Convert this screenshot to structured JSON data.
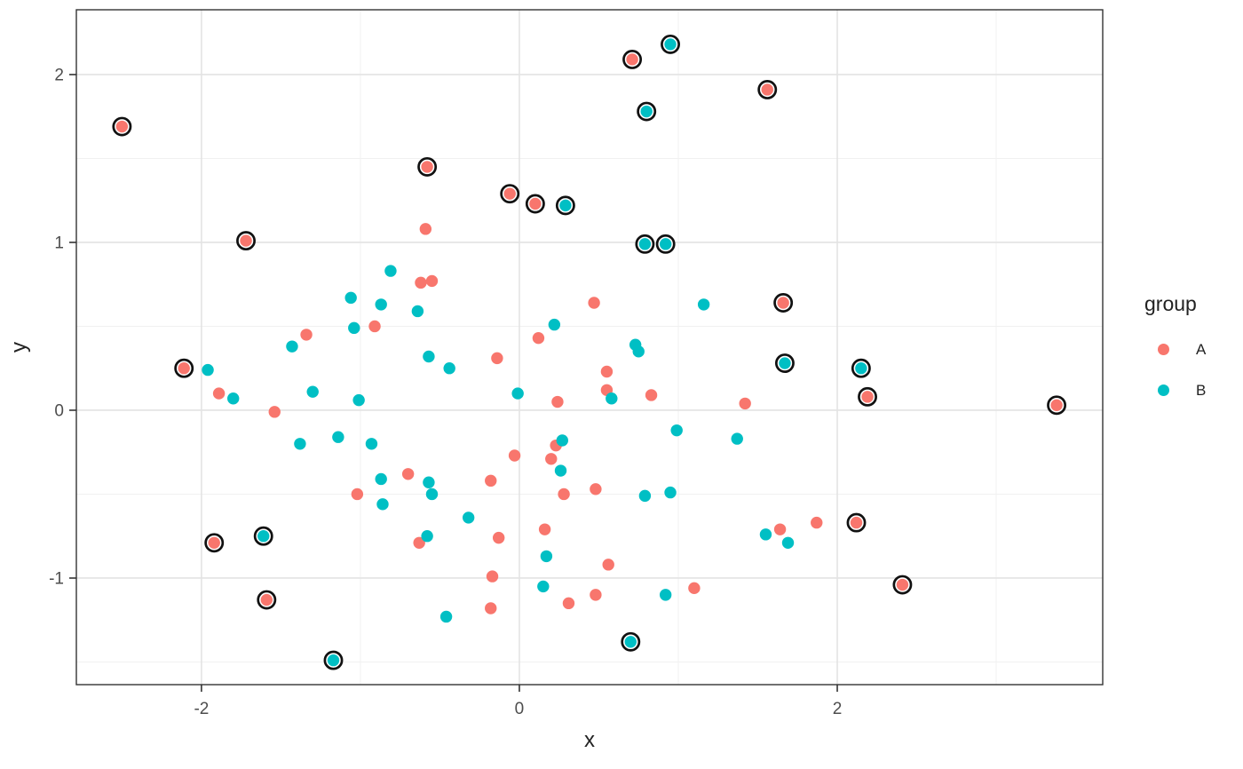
{
  "chart_data": {
    "type": "scatter",
    "title": "",
    "xlabel": "x",
    "ylabel": "y",
    "xlim": [
      -2.787,
      3.67
    ],
    "ylim": [
      -1.635,
      2.386
    ],
    "x_ticks": [
      -2,
      0,
      2
    ],
    "y_ticks": [
      -1,
      0,
      1,
      2
    ],
    "x_minor_gridlines": [
      -1,
      1,
      3
    ],
    "y_minor_gridlines": [
      -1.5,
      -0.5,
      0.5,
      1.5
    ],
    "grid": true,
    "background_color": "#FFFFFF",
    "outline_color": "#111111",
    "outline_meaning": "black open ring drawn around highlighted points",
    "legend": {
      "title": "group",
      "position": "right",
      "entries": [
        {
          "label": "A",
          "color": "#F8766D"
        },
        {
          "label": "B",
          "color": "#00BFC4"
        }
      ]
    },
    "point_format": [
      "x",
      "y",
      "circled"
    ],
    "series": [
      {
        "name": "A",
        "color": "#F8766D",
        "points": [
          [
            0.71,
            2.09,
            1
          ],
          [
            1.56,
            1.91,
            1
          ],
          [
            -2.5,
            1.69,
            1
          ],
          [
            -0.58,
            1.45,
            1
          ],
          [
            -0.06,
            1.29,
            1
          ],
          [
            0.1,
            1.23,
            1
          ],
          [
            -0.59,
            1.08,
            0
          ],
          [
            -1.72,
            1.01,
            1
          ],
          [
            -0.62,
            0.76,
            0
          ],
          [
            -0.55,
            0.77,
            0
          ],
          [
            1.66,
            0.64,
            1
          ],
          [
            0.47,
            0.64,
            0
          ],
          [
            -0.91,
            0.5,
            0
          ],
          [
            -1.34,
            0.45,
            0
          ],
          [
            0.12,
            0.43,
            0
          ],
          [
            -0.14,
            0.31,
            0
          ],
          [
            -2.11,
            0.25,
            1
          ],
          [
            0.55,
            0.23,
            0
          ],
          [
            0.55,
            0.12,
            0
          ],
          [
            -1.89,
            0.1,
            0
          ],
          [
            0.83,
            0.09,
            0
          ],
          [
            2.19,
            0.08,
            1
          ],
          [
            0.24,
            0.05,
            0
          ],
          [
            1.42,
            0.04,
            0
          ],
          [
            3.38,
            0.03,
            1
          ],
          [
            -1.54,
            -0.01,
            0
          ],
          [
            0.23,
            -0.21,
            0
          ],
          [
            -0.03,
            -0.27,
            0
          ],
          [
            0.2,
            -0.29,
            0
          ],
          [
            -0.7,
            -0.38,
            0
          ],
          [
            -0.18,
            -0.42,
            0
          ],
          [
            0.48,
            -0.47,
            0
          ],
          [
            -1.02,
            -0.5,
            0
          ],
          [
            0.28,
            -0.5,
            0
          ],
          [
            2.12,
            -0.67,
            1
          ],
          [
            1.87,
            -0.67,
            0
          ],
          [
            1.64,
            -0.71,
            0
          ],
          [
            0.16,
            -0.71,
            0
          ],
          [
            -0.13,
            -0.76,
            0
          ],
          [
            -1.92,
            -0.79,
            1
          ],
          [
            -0.63,
            -0.79,
            0
          ],
          [
            0.56,
            -0.92,
            0
          ],
          [
            -0.17,
            -0.99,
            0
          ],
          [
            2.41,
            -1.04,
            1
          ],
          [
            1.1,
            -1.06,
            0
          ],
          [
            0.48,
            -1.1,
            0
          ],
          [
            -1.59,
            -1.13,
            1
          ],
          [
            0.31,
            -1.15,
            0
          ],
          [
            -0.18,
            -1.18,
            0
          ]
        ]
      },
      {
        "name": "B",
        "color": "#00BFC4",
        "points": [
          [
            0.95,
            2.18,
            1
          ],
          [
            0.8,
            1.78,
            1
          ],
          [
            0.29,
            1.22,
            1
          ],
          [
            0.79,
            0.99,
            1
          ],
          [
            0.92,
            0.99,
            1
          ],
          [
            -0.81,
            0.83,
            0
          ],
          [
            -1.06,
            0.67,
            0
          ],
          [
            -0.87,
            0.63,
            0
          ],
          [
            1.16,
            0.63,
            0
          ],
          [
            -0.64,
            0.59,
            0
          ],
          [
            0.22,
            0.51,
            0
          ],
          [
            -1.04,
            0.49,
            0
          ],
          [
            0.73,
            0.39,
            0
          ],
          [
            -1.43,
            0.38,
            0
          ],
          [
            0.75,
            0.35,
            0
          ],
          [
            -0.57,
            0.32,
            0
          ],
          [
            1.67,
            0.28,
            1
          ],
          [
            -0.44,
            0.25,
            0
          ],
          [
            2.15,
            0.25,
            1
          ],
          [
            -1.96,
            0.24,
            0
          ],
          [
            -1.3,
            0.11,
            0
          ],
          [
            -0.01,
            0.1,
            0
          ],
          [
            -1.8,
            0.07,
            0
          ],
          [
            0.58,
            0.07,
            0
          ],
          [
            -1.01,
            0.06,
            0
          ],
          [
            0.99,
            -0.12,
            0
          ],
          [
            -1.14,
            -0.16,
            0
          ],
          [
            1.37,
            -0.17,
            0
          ],
          [
            0.27,
            -0.18,
            0
          ],
          [
            -1.38,
            -0.2,
            0
          ],
          [
            -0.93,
            -0.2,
            0
          ],
          [
            0.26,
            -0.36,
            0
          ],
          [
            -0.87,
            -0.41,
            0
          ],
          [
            -0.57,
            -0.43,
            0
          ],
          [
            0.95,
            -0.49,
            0
          ],
          [
            -0.55,
            -0.5,
            0
          ],
          [
            0.79,
            -0.51,
            0
          ],
          [
            -0.86,
            -0.56,
            0
          ],
          [
            -0.32,
            -0.64,
            0
          ],
          [
            1.55,
            -0.74,
            0
          ],
          [
            -1.61,
            -0.75,
            1
          ],
          [
            -0.58,
            -0.75,
            0
          ],
          [
            1.69,
            -0.79,
            0
          ],
          [
            0.17,
            -0.87,
            0
          ],
          [
            0.15,
            -1.05,
            0
          ],
          [
            0.92,
            -1.1,
            0
          ],
          [
            -0.46,
            -1.23,
            0
          ],
          [
            0.7,
            -1.38,
            1
          ],
          [
            -1.17,
            -1.49,
            1
          ]
        ]
      }
    ]
  }
}
